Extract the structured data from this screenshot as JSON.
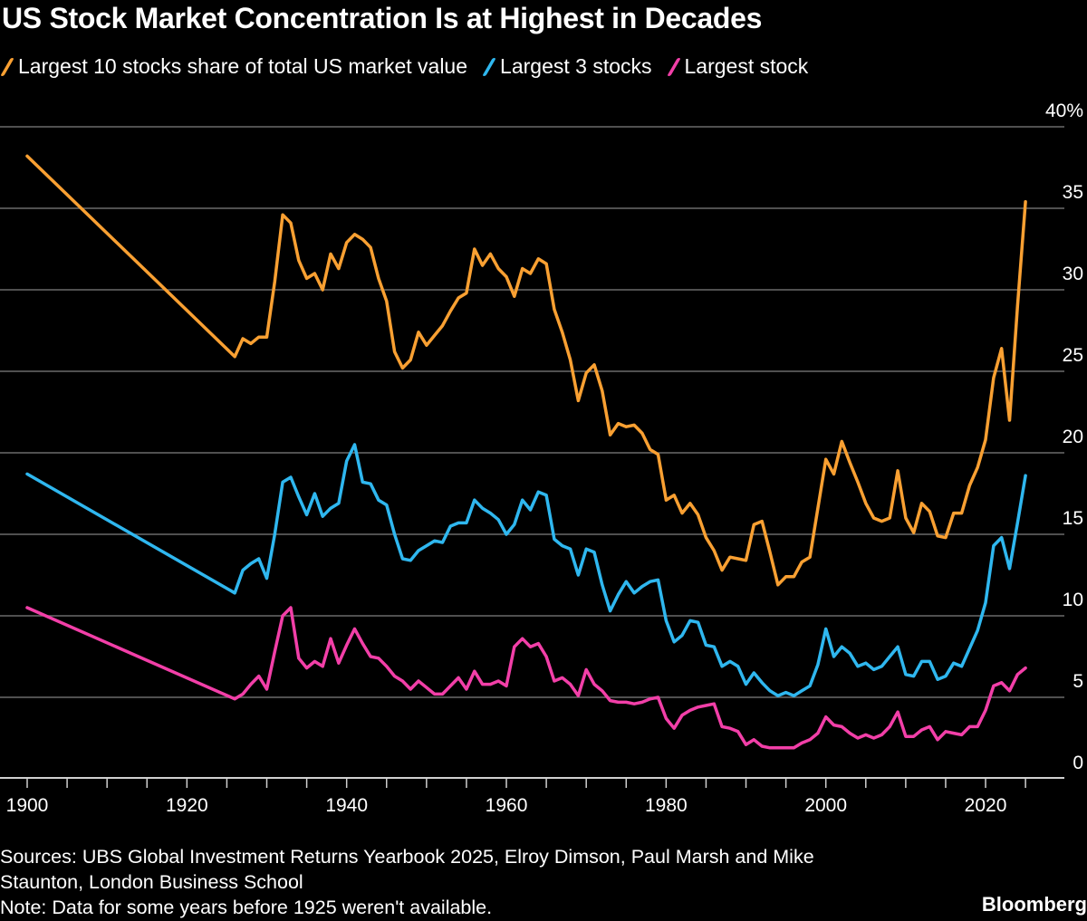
{
  "title": "US Stock Market Concentration Is at Highest in Decades",
  "footer": {
    "sources_line1": "Sources: UBS Global Investment Returns Yearbook 2025, Elroy Dimson, Paul Marsh and Mike",
    "sources_line2": "Staunton, London Business School",
    "note": "Note: Data for some years before 1925 weren't available.",
    "brand": "Bloomberg"
  },
  "chart_data": {
    "type": "line",
    "title": "US Stock Market Concentration Is at Highest in Decades",
    "xlabel": "",
    "ylabel": "",
    "xlim": [
      1900,
      2025
    ],
    "ylim": [
      0,
      40
    ],
    "x_ticks": [
      "1900",
      "1920",
      "1940",
      "1960",
      "1980",
      "2000",
      "2020"
    ],
    "y_ticks": [
      "0",
      "5",
      "10",
      "15",
      "20",
      "25",
      "30",
      "35",
      "40%"
    ],
    "y_tick_values": [
      0,
      5,
      10,
      15,
      20,
      25,
      30,
      35,
      40
    ],
    "y_axis_side": "right",
    "grid": "horizontal",
    "legend_placement": "top-left",
    "background": "#000000",
    "x": [
      1900,
      1926,
      1927,
      1928,
      1929,
      1930,
      1931,
      1932,
      1933,
      1934,
      1935,
      1936,
      1937,
      1938,
      1939,
      1940,
      1941,
      1942,
      1943,
      1944,
      1945,
      1946,
      1947,
      1948,
      1949,
      1950,
      1951,
      1952,
      1953,
      1954,
      1955,
      1956,
      1957,
      1958,
      1959,
      1960,
      1961,
      1962,
      1963,
      1964,
      1965,
      1966,
      1967,
      1968,
      1969,
      1970,
      1971,
      1972,
      1973,
      1974,
      1975,
      1976,
      1977,
      1978,
      1979,
      1980,
      1981,
      1982,
      1983,
      1984,
      1985,
      1986,
      1987,
      1988,
      1989,
      1990,
      1991,
      1992,
      1993,
      1994,
      1995,
      1996,
      1997,
      1998,
      1999,
      2000,
      2001,
      2002,
      2003,
      2004,
      2005,
      2006,
      2007,
      2008,
      2009,
      2010,
      2011,
      2012,
      2013,
      2014,
      2015,
      2016,
      2017,
      2018,
      2019,
      2020,
      2021,
      2022,
      2023,
      2024,
      2025
    ],
    "series": [
      {
        "name": "Largest 10 stocks share of total US market value",
        "color": "#f9a032",
        "values": [
          38.2,
          25.9,
          27.0,
          26.7,
          27.1,
          27.1,
          30.5,
          34.6,
          34.1,
          31.8,
          30.7,
          31.0,
          30.0,
          32.2,
          31.3,
          32.9,
          33.4,
          33.1,
          32.6,
          30.7,
          29.3,
          26.2,
          25.2,
          25.7,
          27.4,
          26.6,
          27.2,
          27.8,
          28.7,
          29.5,
          29.8,
          32.5,
          31.5,
          32.2,
          31.3,
          30.8,
          29.6,
          31.3,
          31.0,
          31.9,
          31.6,
          28.8,
          27.4,
          25.7,
          23.2,
          24.9,
          25.4,
          23.8,
          21.1,
          21.8,
          21.6,
          21.7,
          21.2,
          20.2,
          19.9,
          17.1,
          17.4,
          16.3,
          16.9,
          16.2,
          14.8,
          14.0,
          12.8,
          13.6,
          13.5,
          13.4,
          15.6,
          15.8,
          13.9,
          11.9,
          12.4,
          12.4,
          13.3,
          13.6,
          16.6,
          19.6,
          18.7,
          20.7,
          19.4,
          18.2,
          16.9,
          16.0,
          15.8,
          16.0,
          18.9,
          16.0,
          15.1,
          16.9,
          16.4,
          14.9,
          14.8,
          16.3,
          16.3,
          18.0,
          19.1,
          20.8,
          24.6,
          26.4,
          22.0,
          29.0,
          35.4
        ]
      },
      {
        "name": "Largest 3 stocks",
        "color": "#2fb7ef",
        "values": [
          18.7,
          11.4,
          12.8,
          13.2,
          13.5,
          12.3,
          15.0,
          18.2,
          18.5,
          17.3,
          16.2,
          17.5,
          16.1,
          16.6,
          16.9,
          19.5,
          20.5,
          18.2,
          18.1,
          17.1,
          16.8,
          15.0,
          13.5,
          13.4,
          14.0,
          14.3,
          14.6,
          14.5,
          15.5,
          15.7,
          15.7,
          17.1,
          16.6,
          16.3,
          15.9,
          15.0,
          15.6,
          17.1,
          16.5,
          17.6,
          17.4,
          14.7,
          14.3,
          14.1,
          12.5,
          14.1,
          13.9,
          11.9,
          10.3,
          11.3,
          12.1,
          11.4,
          11.8,
          12.1,
          12.2,
          9.7,
          8.4,
          8.8,
          9.7,
          9.6,
          8.2,
          8.1,
          6.9,
          7.2,
          6.9,
          5.8,
          6.5,
          5.9,
          5.4,
          5.1,
          5.3,
          5.1,
          5.4,
          5.7,
          7.0,
          9.2,
          7.5,
          8.1,
          7.7,
          6.9,
          7.1,
          6.7,
          6.9,
          7.5,
          8.1,
          6.4,
          6.3,
          7.2,
          7.2,
          6.1,
          6.3,
          7.1,
          6.9,
          8.0,
          9.1,
          10.8,
          14.3,
          14.8,
          12.9,
          15.7,
          18.6
        ]
      },
      {
        "name": "Largest stock",
        "color": "#f23fa8",
        "values": [
          10.5,
          4.9,
          5.2,
          5.8,
          6.3,
          5.5,
          7.8,
          10.0,
          10.5,
          7.4,
          6.8,
          7.2,
          6.9,
          8.6,
          7.1,
          8.2,
          9.2,
          8.3,
          7.5,
          7.4,
          6.9,
          6.3,
          6.0,
          5.5,
          6.0,
          5.6,
          5.2,
          5.2,
          5.7,
          6.2,
          5.5,
          6.6,
          5.8,
          5.8,
          6.0,
          5.7,
          8.1,
          8.6,
          8.1,
          8.3,
          7.5,
          6.0,
          6.2,
          5.8,
          5.1,
          6.7,
          5.8,
          5.4,
          4.8,
          4.7,
          4.7,
          4.6,
          4.7,
          4.9,
          5.0,
          3.7,
          3.1,
          3.9,
          4.2,
          4.4,
          4.5,
          4.6,
          3.2,
          3.1,
          2.9,
          2.1,
          2.4,
          2.0,
          1.9,
          1.9,
          1.9,
          1.9,
          2.2,
          2.4,
          2.8,
          3.8,
          3.3,
          3.2,
          2.8,
          2.5,
          2.7,
          2.5,
          2.7,
          3.2,
          4.1,
          2.6,
          2.6,
          3.0,
          3.2,
          2.4,
          2.9,
          2.8,
          2.7,
          3.2,
          3.2,
          4.2,
          5.7,
          5.9,
          5.4,
          6.4,
          6.8
        ]
      }
    ]
  }
}
